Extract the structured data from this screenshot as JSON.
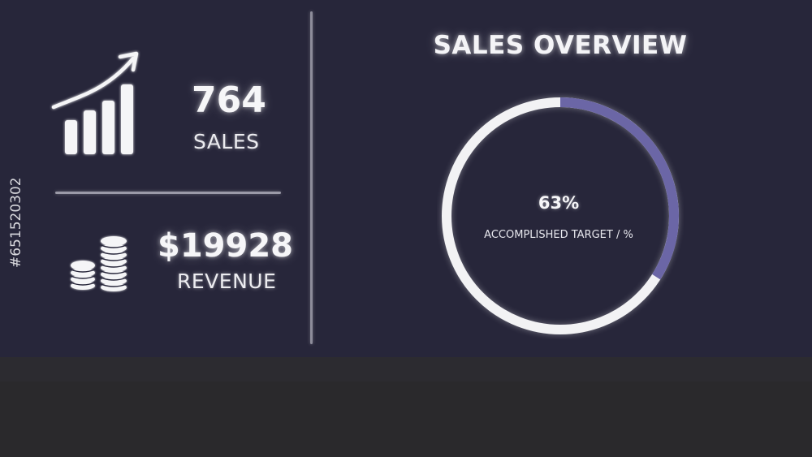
{
  "stats": {
    "sales": {
      "value": "764",
      "label": "SALES"
    },
    "revenue": {
      "value": "$19928",
      "label": "REVENUE"
    }
  },
  "overview": {
    "title": "SALES OVERVIEW",
    "gauge": {
      "percent": 63,
      "value_text": "63%",
      "caption": "ACCOMPLISHED TARGET / %",
      "track_color": "#f2f2f4",
      "fill_color": "#6b66a6"
    }
  },
  "icons": {
    "sales": "growth-chart-icon",
    "revenue": "coin-stacks-icon"
  },
  "colors": {
    "background": "#27263a",
    "footer": "#2a292c",
    "text": "#f4f4f7"
  },
  "watermark": {
    "text": "#651520302"
  }
}
